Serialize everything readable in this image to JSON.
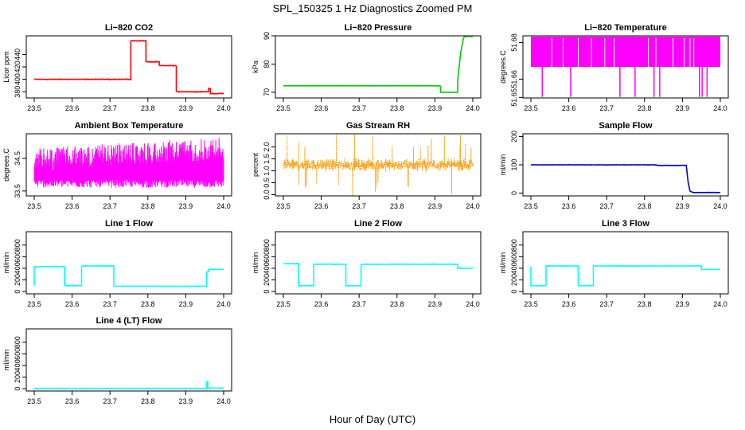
{
  "title": "SPL_150325  1 Hz Diagnostics Zoomed PM",
  "xlabel": "Hour of Day (UTC)",
  "chart_data": [
    {
      "type": "line",
      "title": "Li−820 CO2",
      "ylabel": "Licor ppm",
      "color": "#ff0000",
      "xlim": [
        23.5,
        24.0
      ],
      "ylim": [
        370,
        470
      ],
      "xticks": [
        "23.5",
        "23.6",
        "23.7",
        "23.8",
        "23.9",
        "24.0"
      ],
      "yticks": [
        "380",
        "400",
        "420",
        "440"
      ],
      "step": true,
      "noise": 0.7,
      "wobble": 0.02,
      "segments": [
        [
          23.5,
          400
        ],
        [
          23.755,
          400
        ],
        [
          23.755,
          462
        ],
        [
          23.795,
          462
        ],
        [
          23.795,
          428
        ],
        [
          23.83,
          428
        ],
        [
          23.83,
          422
        ],
        [
          23.875,
          422
        ],
        [
          23.875,
          380
        ],
        [
          23.96,
          380
        ],
        [
          23.96,
          385
        ],
        [
          23.965,
          377
        ],
        [
          24.0,
          377
        ]
      ]
    },
    {
      "type": "line",
      "title": "Li−820 Pressure",
      "ylabel": "kPa",
      "color": "#00cc00",
      "xlim": [
        23.5,
        24.0
      ],
      "ylim": [
        68,
        90
      ],
      "xticks": [
        "23.5",
        "23.6",
        "23.7",
        "23.8",
        "23.9",
        "24.0"
      ],
      "yticks": [
        "70",
        "80",
        "90"
      ],
      "step": false,
      "noise": 0.06,
      "wobble": 0,
      "segments": [
        [
          23.5,
          72.3
        ],
        [
          23.915,
          72.3
        ],
        [
          23.915,
          70.0
        ],
        [
          23.96,
          70.0
        ],
        [
          23.96,
          74.0
        ],
        [
          23.968,
          84.0
        ],
        [
          23.975,
          89.0
        ],
        [
          23.978,
          89.8
        ],
        [
          24.0,
          89.8
        ]
      ]
    },
    {
      "type": "spikes",
      "title": "Li−820 Temperature",
      "ylabel": "degrees.C",
      "color": "#ff00ff",
      "xlim": [
        23.5,
        24.0
      ],
      "ylim": [
        51.6497,
        51.6837
      ],
      "xticks": [
        "23.5",
        "23.6",
        "23.7",
        "23.8",
        "23.9",
        "24.0"
      ],
      "yticks": [
        "51.65",
        "51.66",
        "51.68"
      ],
      "base": 51.6667,
      "top": 51.6833,
      "deep": 51.6503,
      "spikes": [
        23.53,
        23.605,
        23.735,
        23.775,
        23.825,
        23.84,
        23.945,
        23.952,
        23.965
      ],
      "gaps": [
        23.555,
        23.585,
        23.625,
        23.66,
        23.695,
        23.72,
        23.81,
        23.83,
        23.875,
        23.905,
        23.92,
        23.93
      ]
    },
    {
      "type": "noise",
      "title": "Ambient Box Temperature",
      "ylabel": "degrees.C",
      "color": "#ff00ff",
      "xlim": [
        23.5,
        24.0
      ],
      "ylim": [
        33.35,
        35.25
      ],
      "xticks": [
        "23.5",
        "23.6",
        "23.7",
        "23.8",
        "23.9",
        "24.0"
      ],
      "yticks": [
        "33.5",
        "34.5"
      ],
      "low": 33.6,
      "high_start": 34.8,
      "high_end": 35.15,
      "samples": 700
    },
    {
      "type": "band",
      "title": "Gas Stream RH",
      "ylabel": "percent",
      "color": "#ff9900",
      "xlim": [
        23.5,
        24.0
      ],
      "ylim": [
        -0.05,
        2.55
      ],
      "xticks": [
        "23.5",
        "23.6",
        "23.7",
        "23.8",
        "23.9",
        "24.0"
      ],
      "yticks": [
        "0.0",
        "0.5",
        "1.0",
        "1.5",
        "2.0"
      ],
      "center": 1.25,
      "spread": 0.35,
      "samples": 900
    },
    {
      "type": "line",
      "title": "Sample Flow",
      "ylabel": "ml/min",
      "color": "#0000cc",
      "xlim": [
        23.5,
        24.0
      ],
      "ylim": [
        -10,
        210
      ],
      "xticks": [
        "23.5",
        "23.6",
        "23.7",
        "23.8",
        "23.9",
        "24.0"
      ],
      "yticks": [
        "0",
        "100",
        "200"
      ],
      "step": false,
      "noise": 0.8,
      "wobble": 0,
      "segments": [
        [
          23.5,
          100
        ],
        [
          23.83,
          100
        ],
        [
          23.835,
          98
        ],
        [
          23.91,
          98
        ],
        [
          23.915,
          40
        ],
        [
          23.92,
          6
        ],
        [
          23.93,
          2
        ],
        [
          24.0,
          2
        ]
      ]
    },
    {
      "type": "line",
      "title": "Line 1 Flow",
      "ylabel": "ml/min",
      "color": "#00ffff",
      "xlim": [
        23.5,
        24.0
      ],
      "ylim": [
        -40,
        1030
      ],
      "xticks": [
        "23.5",
        "23.6",
        "23.7",
        "23.8",
        "23.9",
        "24.0"
      ],
      "yticks": [
        "0",
        "200",
        "400",
        "600",
        "800"
      ],
      "step": true,
      "noise": 6,
      "wobble": 0,
      "segments": [
        [
          23.5,
          100
        ],
        [
          23.5,
          430
        ],
        [
          23.58,
          430
        ],
        [
          23.58,
          100
        ],
        [
          23.625,
          100
        ],
        [
          23.625,
          440
        ],
        [
          23.71,
          440
        ],
        [
          23.71,
          90
        ],
        [
          23.955,
          90
        ],
        [
          23.955,
          340
        ],
        [
          23.96,
          380
        ],
        [
          24.0,
          380
        ]
      ]
    },
    {
      "type": "line",
      "title": "Line 2 Flow",
      "ylabel": "ml/min",
      "color": "#00ffff",
      "xlim": [
        23.5,
        24.0
      ],
      "ylim": [
        -40,
        1030
      ],
      "xticks": [
        "23.5",
        "23.6",
        "23.7",
        "23.8",
        "23.9",
        "24.0"
      ],
      "yticks": [
        "0",
        "200",
        "400",
        "600",
        "800"
      ],
      "step": true,
      "noise": 8,
      "wobble": 0,
      "segments": [
        [
          23.5,
          480
        ],
        [
          23.54,
          480
        ],
        [
          23.54,
          100
        ],
        [
          23.58,
          100
        ],
        [
          23.58,
          470
        ],
        [
          23.665,
          470
        ],
        [
          23.665,
          100
        ],
        [
          23.705,
          100
        ],
        [
          23.705,
          470
        ],
        [
          23.96,
          470
        ],
        [
          23.96,
          400
        ],
        [
          24.0,
          390
        ]
      ]
    },
    {
      "type": "line",
      "title": "Line 3 Flow",
      "ylabel": "ml/min",
      "color": "#00ffff",
      "xlim": [
        23.5,
        24.0
      ],
      "ylim": [
        -40,
        1030
      ],
      "xticks": [
        "23.5",
        "23.6",
        "23.7",
        "23.8",
        "23.9",
        "24.0"
      ],
      "yticks": [
        "0",
        "200",
        "400",
        "600",
        "800"
      ],
      "step": true,
      "noise": 6,
      "wobble": 0,
      "segments": [
        [
          23.5,
          430
        ],
        [
          23.5,
          100
        ],
        [
          23.54,
          100
        ],
        [
          23.54,
          440
        ],
        [
          23.625,
          440
        ],
        [
          23.625,
          100
        ],
        [
          23.665,
          100
        ],
        [
          23.665,
          440
        ],
        [
          23.95,
          440
        ],
        [
          23.95,
          380
        ],
        [
          24.0,
          370
        ]
      ]
    },
    {
      "type": "line",
      "title": "Line 4 (LT) Flow",
      "ylabel": "ml/min",
      "color": "#00ffff",
      "xlim": [
        23.5,
        24.0
      ],
      "ylim": [
        -40,
        1030
      ],
      "xticks": [
        "23.5",
        "23.6",
        "23.7",
        "23.8",
        "23.9",
        "24.0"
      ],
      "yticks": [
        "0",
        "200",
        "400",
        "600",
        "800"
      ],
      "step": true,
      "noise": 2,
      "wobble": 0,
      "segments": [
        [
          23.5,
          5
        ],
        [
          23.955,
          5
        ],
        [
          23.955,
          120
        ],
        [
          23.958,
          10
        ],
        [
          24.0,
          5
        ]
      ]
    }
  ]
}
